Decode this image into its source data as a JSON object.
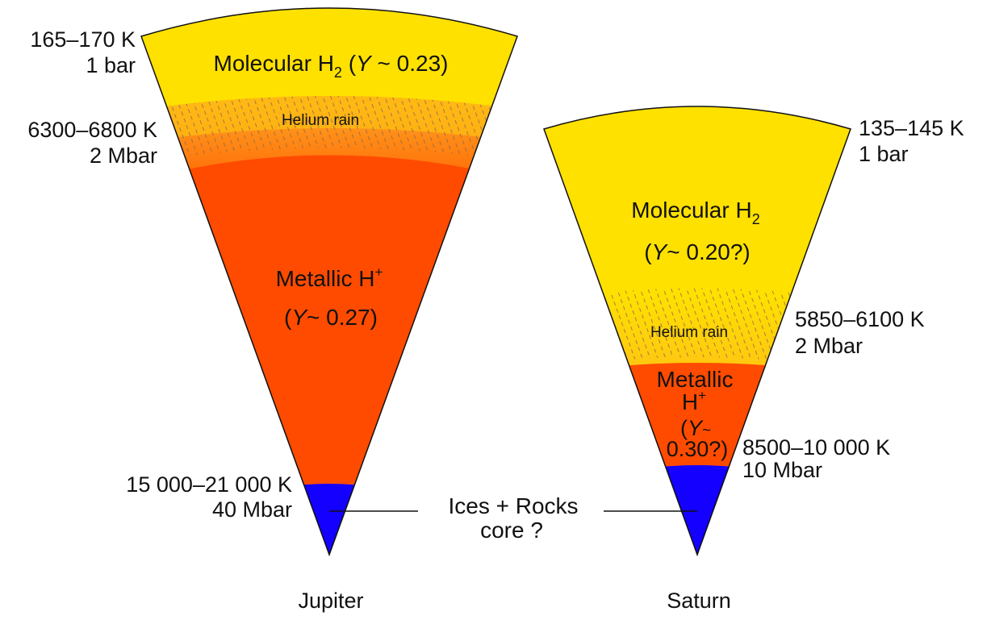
{
  "colors": {
    "molecular": "#FFE100",
    "metallic": "#FF4B00",
    "rain": "#FF9A1E",
    "core": "#1400FF",
    "hatch": "#8A6A4A"
  },
  "jupiter": {
    "name": "Jupiter",
    "molecular": {
      "label": "Molecular H",
      "sub": "2",
      "y_open": "(",
      "y_var": "Y",
      "y_value": " ~ 0.23)"
    },
    "rain_label": "Helium rain",
    "metallic": {
      "label": "Metallic H",
      "sup": "+",
      "y_open": "(",
      "y_var": "Y",
      "y_value": "~ 0.27)"
    },
    "annotations": {
      "top_temp": "165–170 K",
      "top_press": "1 bar",
      "rain_temp": "6300–6800 K",
      "rain_press": "2 Mbar",
      "core_temp": "15 000–21 000 K",
      "core_press": "40 Mbar"
    }
  },
  "saturn": {
    "name": "Saturn",
    "molecular": {
      "label": "Molecular H",
      "sub": "2",
      "y_open": "(",
      "y_var": "Y",
      "y_value": "~ 0.20?)"
    },
    "rain_label": "Helium rain",
    "metallic": {
      "line1": "Metallic",
      "line2": "H",
      "sup": "+",
      "y_open": "(",
      "y_var": "Y",
      "y_tilde": "~",
      "y_value": "0.30?)"
    },
    "annotations": {
      "top_temp": "135–145 K",
      "top_press": "1 bar",
      "rain_temp": "5850–6100 K",
      "rain_press": "2 Mbar",
      "core_temp": "8500–10 000 K",
      "core_press": "10 Mbar"
    }
  },
  "core_label": {
    "line1": "Ices + Rocks",
    "line2": "core  ?"
  }
}
